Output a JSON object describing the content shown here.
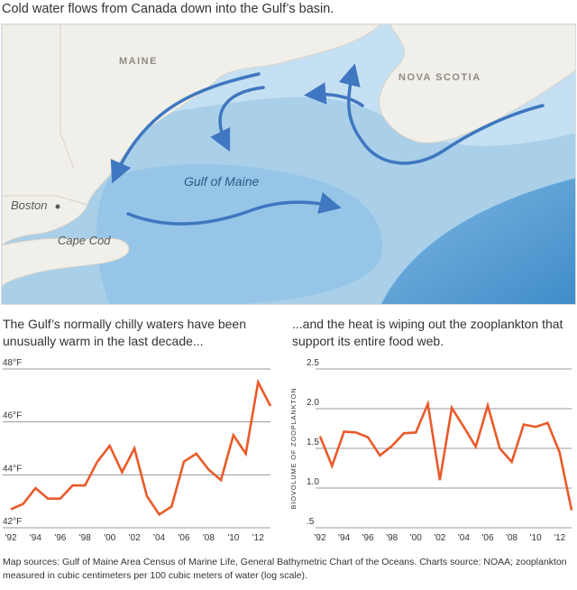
{
  "headline": "Cold water flows from Canada down into the Gulf’s basin.",
  "map": {
    "labels": {
      "maine": "MAINE",
      "nova_scotia": "NOVA SCOTIA",
      "gulf": "Gulf of Maine",
      "boston": "Boston",
      "cape_cod": "Cape Cod"
    },
    "colors": {
      "land": "#f1efe9",
      "water": "#a9cfe9",
      "deep_water": "#5fa3d6",
      "arrow": "#3f77c0"
    }
  },
  "captions": {
    "left": "The Gulf’s normally chilly waters have been unusually warm in the last decade...",
    "right": "...and the heat is wiping out the zooplankton that support its entire food web."
  },
  "chart_data": [
    {
      "type": "line",
      "color": "#ea5a2a",
      "ylim": [
        42,
        48
      ],
      "yticks": [
        "42°F",
        "44°F",
        "46°F",
        "48°F"
      ],
      "ytick_values": [
        42,
        44,
        46,
        48
      ],
      "xticks": [
        "'92",
        "'94",
        "'96",
        "'98",
        "'00",
        "'02",
        "'04",
        "'06",
        "'08",
        "'10",
        "'12"
      ],
      "xtick_values": [
        1992,
        1994,
        1996,
        1998,
        2000,
        2002,
        2004,
        2006,
        2008,
        2010,
        2012
      ],
      "xlim": [
        1992,
        2013
      ],
      "x": [
        1992,
        1993,
        1994,
        1995,
        1996,
        1997,
        1998,
        1999,
        2000,
        2001,
        2002,
        2003,
        2004,
        2005,
        2006,
        2007,
        2008,
        2009,
        2010,
        2011,
        2012,
        2013
      ],
      "y": [
        42.7,
        42.9,
        43.5,
        43.1,
        43.1,
        43.6,
        43.6,
        44.5,
        45.1,
        44.1,
        45.0,
        43.2,
        42.5,
        42.8,
        44.5,
        44.8,
        44.2,
        43.8,
        45.5,
        44.8,
        47.5,
        46.6
      ],
      "grid": true
    },
    {
      "type": "line",
      "color": "#ea5a2a",
      "ylabel": "BIOVOLUME OF ZOOPLANKTON",
      "ylim": [
        0.5,
        2.5
      ],
      "yticks": [
        ".5",
        "1.0",
        "1.5",
        "2.0",
        "2.5"
      ],
      "ytick_values": [
        0.5,
        1.0,
        1.5,
        2.0,
        2.5
      ],
      "xticks": [
        "'92",
        "'94",
        "'96",
        "'98",
        "'00",
        "'02",
        "'04",
        "'06",
        "'08",
        "'10",
        "'12"
      ],
      "xtick_values": [
        1992,
        1994,
        1996,
        1998,
        2000,
        2002,
        2004,
        2006,
        2008,
        2010,
        2012
      ],
      "xlim": [
        1992,
        2013
      ],
      "x": [
        1992,
        1993,
        1994,
        1995,
        1996,
        1997,
        1998,
        1999,
        2000,
        2001,
        2002,
        2003,
        2004,
        2005,
        2006,
        2007,
        2008,
        2009,
        2010,
        2011,
        2012,
        2013
      ],
      "y": [
        1.65,
        1.28,
        1.71,
        1.7,
        1.64,
        1.41,
        1.53,
        1.69,
        1.7,
        2.06,
        1.1,
        2.01,
        1.77,
        1.52,
        2.04,
        1.5,
        1.33,
        1.8,
        1.77,
        1.82,
        1.45,
        0.72
      ],
      "grid": true
    }
  ],
  "footer": "Map sources: Gulf of Maine Area Census of Marine Life, General Bathymetric Chart of the Oceans. Charts source: NOAA; zooplankton measured in cubic centimeters per 100 cubic meters of water (log scale)."
}
